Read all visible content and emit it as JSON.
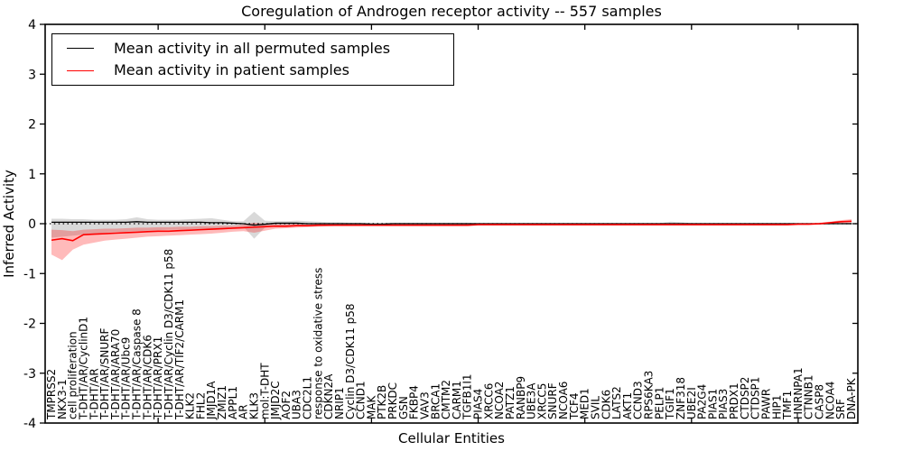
{
  "chart_data": {
    "type": "line",
    "title": "Coregulation of Androgen receptor activity -- 557 samples",
    "xlabel": "Cellular Entities",
    "ylabel": "Inferred Activity",
    "ylim": [
      -4,
      4
    ],
    "yticks": [
      -4,
      -3,
      -2,
      -1,
      0,
      1,
      2,
      3,
      4
    ],
    "xtick_positions": [
      10,
      20,
      30,
      40,
      50,
      60,
      70
    ],
    "grid": false,
    "legend_position": "upper left",
    "zero_reference_line": 0,
    "frame_color": "#000000",
    "categories": [
      "TMPRSS2",
      "NKX3-1",
      "cell proliferation",
      "T-DHT/AR/CyclinD1",
      "T-DHT/AR",
      "T-DHT/AR/SNURF",
      "T-DHT/AR/ARA70",
      "T-DHT/AR/Ubc9",
      "T-DHT/AR/Caspase 8",
      "T-DHT/AR/CDK6",
      "T-DHT/AR/PRX1",
      "T-DHT/AR/Cyclin D3/CDK11 p58",
      "T-DHT/AR/TIF2/CARM1",
      "KLK2",
      "FHL2",
      "JMJD1A",
      "ZMIZ1",
      "APPL1",
      "AR",
      "KLK3",
      "mol:T-DHT",
      "JMJD2C",
      "AOF2",
      "UBA3",
      "CDC2L1",
      "response to oxidative stress",
      "CDKN2A",
      "NRIP1",
      "Cyclin D3/CDK11 p58",
      "CCND1",
      "MAK",
      "PTK2B",
      "PRKDC",
      "GSN",
      "FKBP4",
      "VAV3",
      "BRCA1",
      "CMTM2",
      "CARM1",
      "TGFB1I1",
      "PIAS4",
      "XRCC6",
      "NCOA2",
      "PATZ1",
      "RANBP9",
      "UBE3A",
      "XRCC5",
      "SNURF",
      "NCOA6",
      "TCF4",
      "MED1",
      "SVIL",
      "CDK6",
      "LATS2",
      "AKT1",
      "CCND3",
      "RPS6KA3",
      "PELP1",
      "TGIF1",
      "ZNF318",
      "UBE2I",
      "PA2G4",
      "PIAS1",
      "PIAS3",
      "PRDX1",
      "CTDSP2",
      "CTDSP1",
      "PAWR",
      "HIP1",
      "TMF1",
      "HNRNPA1",
      "CTNNB1",
      "CASP8",
      "NCOA4",
      "SRF",
      "DNA-PK"
    ],
    "series": [
      {
        "name": "Mean activity in all permuted samples",
        "color": "#000000",
        "band_color": "rgba(0,0,0,0.15)",
        "mean": [
          0.03,
          0.03,
          0.03,
          0.03,
          0.03,
          0.03,
          0.03,
          0.03,
          0.04,
          0.03,
          0.03,
          0.03,
          0.03,
          0.03,
          0.03,
          0.02,
          0.02,
          0.01,
          0,
          -0.03,
          -0.01,
          0.01,
          0.01,
          0.01,
          0,
          0,
          0,
          0,
          0,
          0,
          -0.01,
          -0.01,
          0,
          0,
          0,
          0,
          0,
          0,
          0,
          0,
          0,
          0,
          0,
          0,
          0,
          0,
          0,
          0,
          0,
          0,
          0,
          0,
          0,
          0,
          0,
          0,
          0,
          0,
          0,
          0,
          0,
          0,
          0,
          0,
          0,
          0,
          0,
          0,
          0,
          0,
          0,
          0,
          0,
          0,
          0,
          0
        ],
        "upper": [
          0.1,
          0.1,
          0.09,
          0.09,
          0.08,
          0.08,
          0.08,
          0.09,
          0.13,
          0.09,
          0.08,
          0.08,
          0.08,
          0.09,
          0.1,
          0.11,
          0.08,
          0.05,
          0.05,
          0.24,
          0.06,
          0.05,
          0.05,
          0.06,
          0.05,
          0.04,
          0.03,
          0.03,
          0.02,
          0.02,
          0.02,
          0.02,
          0.02,
          0.02,
          0.02,
          0.02,
          0.02,
          0.02,
          0.02,
          0.02,
          0.01,
          0.01,
          0.01,
          0.01,
          0.01,
          0.01,
          0.01,
          0.01,
          0.01,
          0.01,
          0.01,
          0.01,
          0.01,
          0.01,
          0.01,
          0.01,
          0.01,
          0.01,
          0.04,
          0.03,
          0.01,
          0.01,
          0.01,
          0.01,
          0.01,
          0.01,
          0.01,
          0.01,
          0.01,
          0.01,
          0.01,
          0.01,
          0.01,
          0.01,
          0.01,
          0.02
        ],
        "lower": [
          -0.28,
          -0.26,
          -0.24,
          -0.22,
          -0.2,
          -0.18,
          -0.17,
          -0.16,
          -0.15,
          -0.14,
          -0.13,
          -0.12,
          -0.12,
          -0.11,
          -0.11,
          -0.1,
          -0.09,
          -0.07,
          -0.06,
          -0.3,
          -0.08,
          -0.05,
          -0.04,
          -0.05,
          -0.04,
          -0.03,
          -0.03,
          -0.02,
          -0.02,
          -0.02,
          -0.02,
          -0.02,
          -0.02,
          -0.02,
          -0.02,
          -0.02,
          -0.02,
          -0.02,
          -0.02,
          -0.02,
          -0.01,
          -0.01,
          -0.01,
          -0.01,
          -0.01,
          -0.01,
          -0.01,
          -0.01,
          -0.01,
          -0.01,
          -0.01,
          -0.01,
          -0.01,
          -0.01,
          -0.01,
          -0.01,
          -0.01,
          -0.01,
          -0.02,
          -0.02,
          -0.01,
          -0.01,
          -0.01,
          -0.01,
          -0.01,
          -0.01,
          -0.01,
          -0.01,
          -0.01,
          -0.01,
          -0.01,
          -0.01,
          -0.01,
          -0.01,
          -0.01,
          -0.02
        ]
      },
      {
        "name": "Mean activity in patient samples",
        "color": "#ff0000",
        "band_color": "rgba(255,0,0,0.27)",
        "mean": [
          -0.33,
          -0.3,
          -0.34,
          -0.22,
          -0.21,
          -0.2,
          -0.19,
          -0.18,
          -0.17,
          -0.16,
          -0.15,
          -0.15,
          -0.14,
          -0.13,
          -0.12,
          -0.11,
          -0.1,
          -0.09,
          -0.08,
          -0.07,
          -0.06,
          -0.05,
          -0.05,
          -0.04,
          -0.04,
          -0.03,
          -0.03,
          -0.03,
          -0.03,
          -0.03,
          -0.03,
          -0.03,
          -0.03,
          -0.03,
          -0.03,
          -0.03,
          -0.03,
          -0.03,
          -0.03,
          -0.03,
          -0.02,
          -0.02,
          -0.02,
          -0.02,
          -0.02,
          -0.02,
          -0.02,
          -0.02,
          -0.02,
          -0.02,
          -0.02,
          -0.02,
          -0.02,
          -0.02,
          -0.02,
          -0.02,
          -0.02,
          -0.02,
          -0.02,
          -0.02,
          -0.02,
          -0.02,
          -0.02,
          -0.02,
          -0.02,
          -0.02,
          -0.02,
          -0.02,
          -0.02,
          -0.02,
          -0.01,
          -0.01,
          0,
          0.02,
          0.04,
          0.05
        ],
        "upper": [
          -0.12,
          -0.13,
          -0.15,
          -0.12,
          -0.11,
          -0.1,
          -0.1,
          -0.09,
          -0.08,
          -0.08,
          -0.07,
          -0.07,
          -0.06,
          -0.06,
          -0.05,
          -0.05,
          -0.04,
          -0.04,
          -0.02,
          0.02,
          0,
          -0.01,
          -0.01,
          -0.01,
          -0.02,
          -0.01,
          -0.01,
          -0.01,
          -0.01,
          -0.01,
          -0.01,
          -0.01,
          -0.01,
          -0.01,
          -0.01,
          -0.01,
          -0.01,
          -0.01,
          -0.01,
          -0.01,
          -0.01,
          -0.01,
          -0.01,
          -0.01,
          -0.01,
          -0.01,
          -0.01,
          -0.01,
          -0.01,
          -0.01,
          -0.01,
          -0.01,
          -0.01,
          -0.01,
          -0.01,
          -0.01,
          0,
          0,
          0,
          0,
          0,
          0,
          0,
          0,
          0,
          0,
          0,
          0,
          0,
          0,
          0.01,
          0.01,
          0.02,
          0.04,
          0.07,
          0.09
        ],
        "lower": [
          -0.62,
          -0.73,
          -0.52,
          -0.42,
          -0.38,
          -0.34,
          -0.32,
          -0.3,
          -0.28,
          -0.26,
          -0.25,
          -0.24,
          -0.23,
          -0.22,
          -0.21,
          -0.2,
          -0.18,
          -0.16,
          -0.15,
          -0.18,
          -0.14,
          -0.1,
          -0.09,
          -0.08,
          -0.07,
          -0.06,
          -0.05,
          -0.04,
          -0.04,
          -0.04,
          -0.04,
          -0.04,
          -0.04,
          -0.04,
          -0.04,
          -0.04,
          -0.04,
          -0.04,
          -0.04,
          -0.04,
          -0.03,
          -0.03,
          -0.03,
          -0.03,
          -0.03,
          -0.03,
          -0.03,
          -0.03,
          -0.03,
          -0.03,
          -0.03,
          -0.03,
          -0.03,
          -0.03,
          -0.03,
          -0.03,
          -0.03,
          -0.03,
          -0.03,
          -0.03,
          -0.03,
          -0.03,
          -0.03,
          -0.03,
          -0.03,
          -0.03,
          -0.03,
          -0.03,
          -0.03,
          -0.03,
          -0.02,
          -0.02,
          -0.02,
          -0.01,
          0,
          0.01
        ]
      }
    ]
  }
}
